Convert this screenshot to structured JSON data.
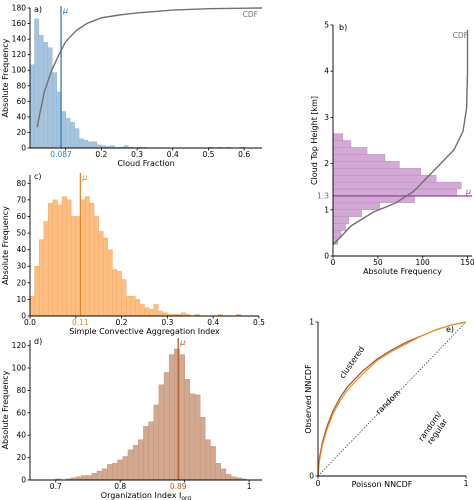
{
  "chart_data": [
    {
      "id": "a",
      "type": "bar",
      "panel_label": "a)",
      "xlabel": "Cloud Fraction",
      "ylabel": "Absolute Frequency",
      "xlim": [
        0.0,
        0.65
      ],
      "ylim": [
        0,
        180
      ],
      "xticks": [
        0.1,
        0.2,
        0.3,
        0.4,
        0.5,
        0.6
      ],
      "xtick_labels": [
        "0.1",
        "0.2",
        "0.3",
        "0.4",
        "0.5",
        "0.6"
      ],
      "yticks": [
        0,
        20,
        40,
        60,
        80,
        100,
        120,
        140,
        160,
        180
      ],
      "ytick_labels": [
        "0",
        "20",
        "40",
        "60",
        "80",
        "100",
        "120",
        "140",
        "160",
        "180"
      ],
      "bins_start": 0.0,
      "bin_width": 0.0125,
      "values": [
        107,
        166,
        145,
        136,
        129,
        97,
        72,
        47,
        38,
        33,
        25,
        12,
        10,
        8,
        8,
        4,
        3,
        2,
        3,
        1,
        1,
        3,
        1,
        0,
        1,
        1,
        0,
        0,
        0,
        0,
        0,
        0,
        0,
        0,
        0,
        0,
        0,
        0,
        0,
        0,
        1,
        0,
        1,
        0,
        1,
        0,
        0,
        1,
        0,
        0
      ],
      "mean": 0.087,
      "mean_label": "0.087",
      "mu_label": "μ",
      "cdf_label": "CDF",
      "cdf_x": [
        0.02,
        0.04,
        0.06,
        0.08,
        0.1,
        0.13,
        0.16,
        0.2,
        0.25,
        0.3,
        0.4,
        0.5,
        0.65
      ],
      "cdf_y": [
        0.15,
        0.4,
        0.55,
        0.66,
        0.76,
        0.84,
        0.89,
        0.93,
        0.95,
        0.965,
        0.985,
        0.995,
        1.0
      ],
      "bar_color": "#a6c4de",
      "bar_edge": "#8fb2d2",
      "mean_color": "#2f7dbb",
      "cdf_color": "#707070"
    },
    {
      "id": "b",
      "type": "bar",
      "orientation": "horizontal",
      "panel_label": "b)",
      "xlabel": "Absolute Frequency",
      "ylabel": "Cloud Top Height [km]",
      "xlim": [
        0,
        1550
      ],
      "ylim": [
        0,
        5
      ],
      "xticks": [
        0,
        50,
        100,
        150
      ],
      "xtick_values": [
        0,
        500,
        1000,
        1500
      ],
      "xtick_labels": [
        "0",
        "50",
        "100",
        "150"
      ],
      "yticks": [
        0,
        1,
        2,
        3,
        4,
        5
      ],
      "ytick_labels": [
        "0",
        "1",
        "2",
        "3",
        "4",
        "5"
      ],
      "bins_start": 0.25,
      "bin_width": 0.15,
      "values": [
        55,
        90,
        140,
        175,
        320,
        520,
        910,
        1380,
        1430,
        1150,
        980,
        740,
        580,
        380,
        200,
        110
      ],
      "mean": 1.3,
      "mean_label": "1.3",
      "mu_label": "μ",
      "cdf_label": "CDF",
      "cdf_x": [
        0,
        80,
        200,
        450,
        700,
        900,
        1050,
        1200,
        1350,
        1450,
        1490,
        1500,
        1500
      ],
      "cdf_y": [
        0.25,
        0.4,
        0.65,
        0.95,
        1.15,
        1.4,
        1.7,
        2.0,
        2.3,
        2.7,
        3.2,
        4.0,
        4.9
      ],
      "bar_color": "#d3a9d6",
      "bar_edge": "#b784bb",
      "mean_color": "#9b4aa6",
      "cdf_color": "#707070"
    },
    {
      "id": "c",
      "type": "bar",
      "panel_label": "c)",
      "xlabel": "Simple Convective Aggregation Index",
      "ylabel": "Absolute Frequency",
      "xlim": [
        0.0,
        0.5
      ],
      "ylim": [
        0,
        85
      ],
      "xticks": [
        0.0,
        0.1,
        0.2,
        0.3,
        0.4,
        0.5
      ],
      "xtick_labels": [
        "0.0",
        "0.1",
        "0.2",
        "0.3",
        "0.4",
        "0.5"
      ],
      "yticks": [
        0,
        10,
        20,
        30,
        40,
        50,
        60,
        70,
        80
      ],
      "ytick_labels": [
        "0",
        "10",
        "20",
        "30",
        "40",
        "50",
        "60",
        "70",
        "80"
      ],
      "bins_start": 0.0,
      "bin_width": 0.01,
      "values": [
        12,
        30,
        46,
        57,
        68,
        70,
        67,
        72,
        70,
        60,
        60,
        70,
        72,
        68,
        60,
        51,
        47,
        40,
        28,
        27,
        22,
        12,
        12,
        10,
        7,
        5,
        4,
        7,
        3,
        2,
        1,
        1,
        1,
        2,
        1,
        0,
        1,
        0,
        0,
        0,
        0,
        1,
        0,
        0,
        0,
        1,
        0,
        0,
        0,
        0
      ],
      "mean": 0.11,
      "mean_label": "0.11",
      "mu_label": "μ",
      "bar_color": "#fdbe82",
      "bar_edge": "#f2a35e",
      "mean_color": "#e08b2a"
    },
    {
      "id": "d",
      "type": "bar",
      "panel_label": "d)",
      "xlabel": "Organization Index I",
      "xlabel_sub": "org",
      "ylabel": "Absolute Frequency",
      "xlim": [
        0.66,
        1.02
      ],
      "ylim": [
        0,
        125
      ],
      "xticks": [
        0.7,
        0.8,
        0.9,
        1.0
      ],
      "xtick_labels": [
        "0.7",
        "0.8",
        "0.9",
        "1"
      ],
      "yticks": [
        0,
        20,
        40,
        60,
        80,
        100,
        120
      ],
      "ytick_labels": [
        "0",
        "20",
        "40",
        "60",
        "80",
        "100",
        "120"
      ],
      "bins_start": 0.7,
      "bin_width": 0.008,
      "values": [
        1,
        0,
        1,
        2,
        3,
        4,
        4,
        6,
        8,
        10,
        14,
        15,
        18,
        21,
        27,
        31,
        36,
        48,
        52,
        67,
        85,
        96,
        112,
        117,
        112,
        90,
        77,
        76,
        56,
        36,
        30,
        15,
        10,
        5,
        3,
        2,
        1
      ],
      "mean": 0.89,
      "mean_label": "0.89",
      "mu_label": "μ",
      "bar_color": "#d2a890",
      "bar_edge": "#bd8e74",
      "mean_color": "#b35a2a"
    },
    {
      "id": "e",
      "type": "line",
      "panel_label": "e)",
      "xlabel": "Poisson NNCDF",
      "ylabel": "Observed NNCDF",
      "xlim": [
        0,
        1
      ],
      "ylim": [
        0,
        1
      ],
      "xticks": [
        0,
        1
      ],
      "xtick_labels": [
        "0",
        "1"
      ],
      "yticks": [
        0,
        1
      ],
      "ytick_labels": [
        "0",
        "1"
      ],
      "series": [
        {
          "x": [
            0,
            0.01,
            0.03,
            0.06,
            0.1,
            0.15,
            0.2,
            0.3,
            0.4,
            0.5,
            0.6,
            0.7,
            0.8,
            0.9,
            1.0
          ],
          "y": [
            0,
            0.12,
            0.22,
            0.32,
            0.42,
            0.51,
            0.58,
            0.68,
            0.76,
            0.82,
            0.87,
            0.91,
            0.95,
            0.98,
            1.0
          ],
          "color": "#a0522d"
        },
        {
          "x": [
            0,
            0.01,
            0.03,
            0.06,
            0.1,
            0.15,
            0.2,
            0.3,
            0.4,
            0.5,
            0.6,
            0.7,
            0.8,
            0.9,
            1.0
          ],
          "y": [
            0,
            0.1,
            0.2,
            0.3,
            0.4,
            0.49,
            0.56,
            0.66,
            0.75,
            0.81,
            0.86,
            0.91,
            0.95,
            0.98,
            1.0
          ],
          "color": "#e8922d"
        }
      ],
      "reference_line": [
        [
          0,
          0
        ],
        [
          1,
          1
        ]
      ],
      "annotations": [
        "clustered",
        "random",
        "random/\nregular"
      ]
    }
  ]
}
